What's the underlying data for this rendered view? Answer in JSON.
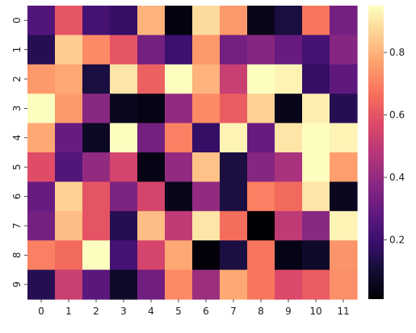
{
  "chart_data": {
    "type": "heatmap",
    "title": "",
    "xlabel": "",
    "ylabel": "",
    "x_categories": [
      "0",
      "1",
      "2",
      "3",
      "4",
      "5",
      "6",
      "7",
      "8",
      "9",
      "10",
      "11"
    ],
    "y_categories": [
      "0",
      "1",
      "2",
      "3",
      "4",
      "5",
      "6",
      "7",
      "8",
      "9"
    ],
    "values": [
      [
        0.25,
        0.6,
        0.22,
        0.18,
        0.8,
        0.03,
        0.88,
        0.75,
        0.05,
        0.12,
        0.68,
        0.33
      ],
      [
        0.15,
        0.85,
        0.72,
        0.6,
        0.33,
        0.2,
        0.75,
        0.33,
        0.37,
        0.3,
        0.22,
        0.37
      ],
      [
        0.75,
        0.78,
        0.12,
        0.9,
        0.63,
        0.95,
        0.8,
        0.52,
        0.95,
        0.93,
        0.18,
        0.28
      ],
      [
        0.95,
        0.75,
        0.38,
        0.06,
        0.04,
        0.4,
        0.72,
        0.62,
        0.86,
        0.05,
        0.92,
        0.15
      ],
      [
        0.78,
        0.3,
        0.07,
        0.95,
        0.33,
        0.7,
        0.18,
        0.93,
        0.3,
        0.9,
        0.95,
        0.93
      ],
      [
        0.58,
        0.25,
        0.4,
        0.55,
        0.04,
        0.4,
        0.83,
        0.12,
        0.37,
        0.45,
        0.95,
        0.76
      ],
      [
        0.3,
        0.86,
        0.6,
        0.35,
        0.55,
        0.05,
        0.4,
        0.12,
        0.7,
        0.65,
        0.9,
        0.06
      ],
      [
        0.33,
        0.82,
        0.6,
        0.15,
        0.82,
        0.5,
        0.9,
        0.66,
        0.01,
        0.5,
        0.38,
        0.93
      ],
      [
        0.7,
        0.65,
        0.95,
        0.22,
        0.55,
        0.78,
        0.02,
        0.12,
        0.68,
        0.04,
        0.08,
        0.74
      ],
      [
        0.15,
        0.52,
        0.27,
        0.08,
        0.32,
        0.72,
        0.42,
        0.78,
        0.68,
        0.57,
        0.62,
        0.73
      ]
    ],
    "colormap": "magma",
    "vmin": 0.01,
    "vmax": 0.95,
    "colorbar": {
      "ticks": [
        0.2,
        0.4,
        0.6,
        0.8
      ],
      "tick_labels": [
        "0.2",
        "0.4",
        "0.6",
        "0.8"
      ]
    }
  }
}
